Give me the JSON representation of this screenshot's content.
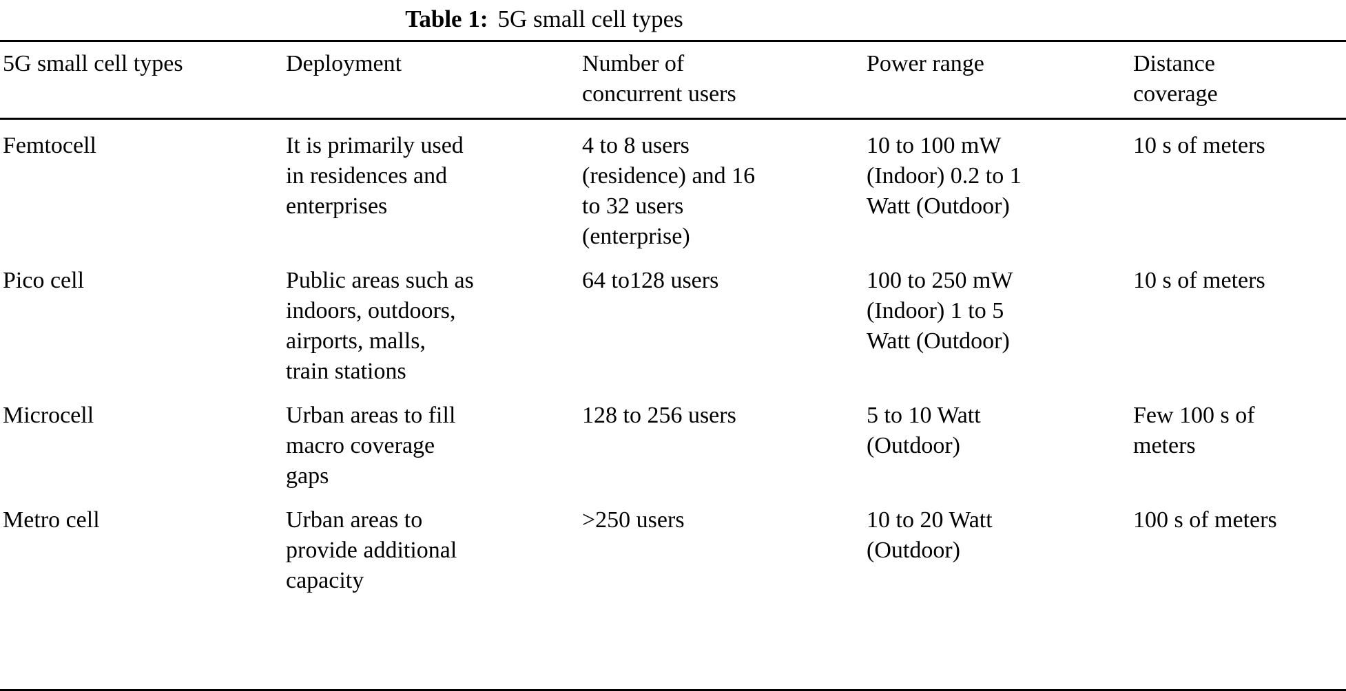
{
  "caption": {
    "label": "Table 1:",
    "text": "5G small cell types"
  },
  "table": {
    "headers": [
      "5G small cell types",
      "Deployment",
      "Number of\nconcurrent users",
      "Power range",
      "Distance\ncoverage"
    ],
    "rows": [
      [
        "Femtocell",
        "It is primarily used\nin residences and\nenterprises",
        "4 to 8 users\n(residence) and 16\nto 32 users\n(enterprise)",
        "10 to 100 mW\n(Indoor) 0.2 to 1\nWatt (Outdoor)",
        "10 s of meters"
      ],
      [
        "Pico cell",
        "Public areas such as\nindoors, outdoors,\nairports, malls,\ntrain stations",
        "64 to128 users",
        "100 to 250 mW\n(Indoor) 1 to 5\nWatt (Outdoor)",
        "10 s of meters"
      ],
      [
        "Microcell",
        "Urban areas to fill\nmacro coverage\ngaps",
        "128 to 256 users",
        "5 to 10 Watt\n(Outdoor)",
        "Few 100 s of\nmeters"
      ],
      [
        "Metro cell",
        "Urban areas to\nprovide additional\ncapacity",
        ">250 users",
        "10 to 20 Watt\n(Outdoor)",
        "100 s of meters"
      ]
    ]
  },
  "colors": {
    "text": "#000000",
    "background": "#ffffff",
    "rule": "#000000"
  }
}
